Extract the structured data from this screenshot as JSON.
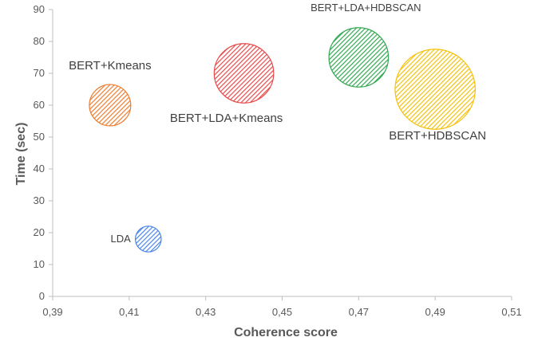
{
  "chart_data": {
    "type": "scatter",
    "subtype": "bubble",
    "title": "",
    "xlabel": "Coherence score",
    "ylabel": "Time (sec)",
    "xlim": [
      0.39,
      0.51
    ],
    "ylim": [
      0,
      90
    ],
    "x_ticks": [
      "0,39",
      "0,41",
      "0,43",
      "0,45",
      "0,47",
      "0,49",
      "0,51"
    ],
    "y_ticks": [
      "0",
      "10",
      "20",
      "30",
      "40",
      "50",
      "60",
      "70",
      "80",
      "90"
    ],
    "grid": false,
    "legend": "none",
    "series": [
      {
        "name": "LDA",
        "x": 0.415,
        "y": 18,
        "size": 1.0,
        "color": "#4a86e8"
      },
      {
        "name": "BERT+Kmeans",
        "x": 0.405,
        "y": 60,
        "size": 1.6,
        "color": "#ed7d31"
      },
      {
        "name": "BERT+LDA+Kmeans",
        "x": 0.44,
        "y": 70,
        "size": 2.3,
        "color": "#e84a4a"
      },
      {
        "name": "BERT+LDA+HDBSCAN",
        "x": 0.47,
        "y": 75,
        "size": 2.3,
        "color": "#34a853"
      },
      {
        "name": "BERT+HDBSCAN",
        "x": 0.49,
        "y": 65,
        "size": 3.1,
        "color": "#f4c20d"
      }
    ]
  }
}
